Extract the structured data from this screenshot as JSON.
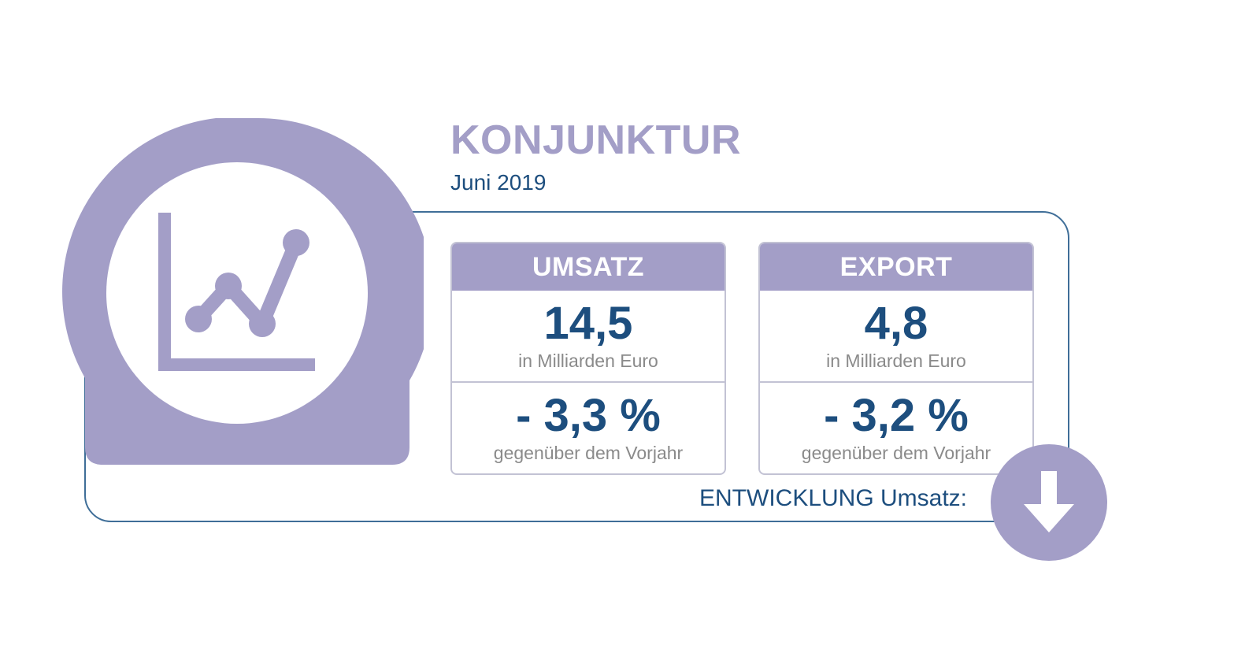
{
  "header": {
    "title": "KONJUNKTUR",
    "subtitle": "Juni 2019"
  },
  "cards": [
    {
      "header": "UMSATZ",
      "value": "14,5",
      "unit": "in Milliarden Euro",
      "change": "- 3,3 %",
      "change_label": "gegenüber dem Vorjahr"
    },
    {
      "header": "EXPORT",
      "value": "4,8",
      "unit": "in Milliarden Euro",
      "change": "- 3,2 %",
      "change_label": "gegenüber dem Vorjahr"
    }
  ],
  "development": {
    "label": "ENTWICKLUNG Umsatz:",
    "direction_icon": "arrow-down-icon"
  },
  "badge": {
    "icon": "line-chart-icon"
  },
  "colors": {
    "accent_lavender": "#a39ec7",
    "value_blue": "#1d4e7e",
    "frame_blue": "#3f6e98",
    "muted_gray": "#8a8a8a"
  }
}
